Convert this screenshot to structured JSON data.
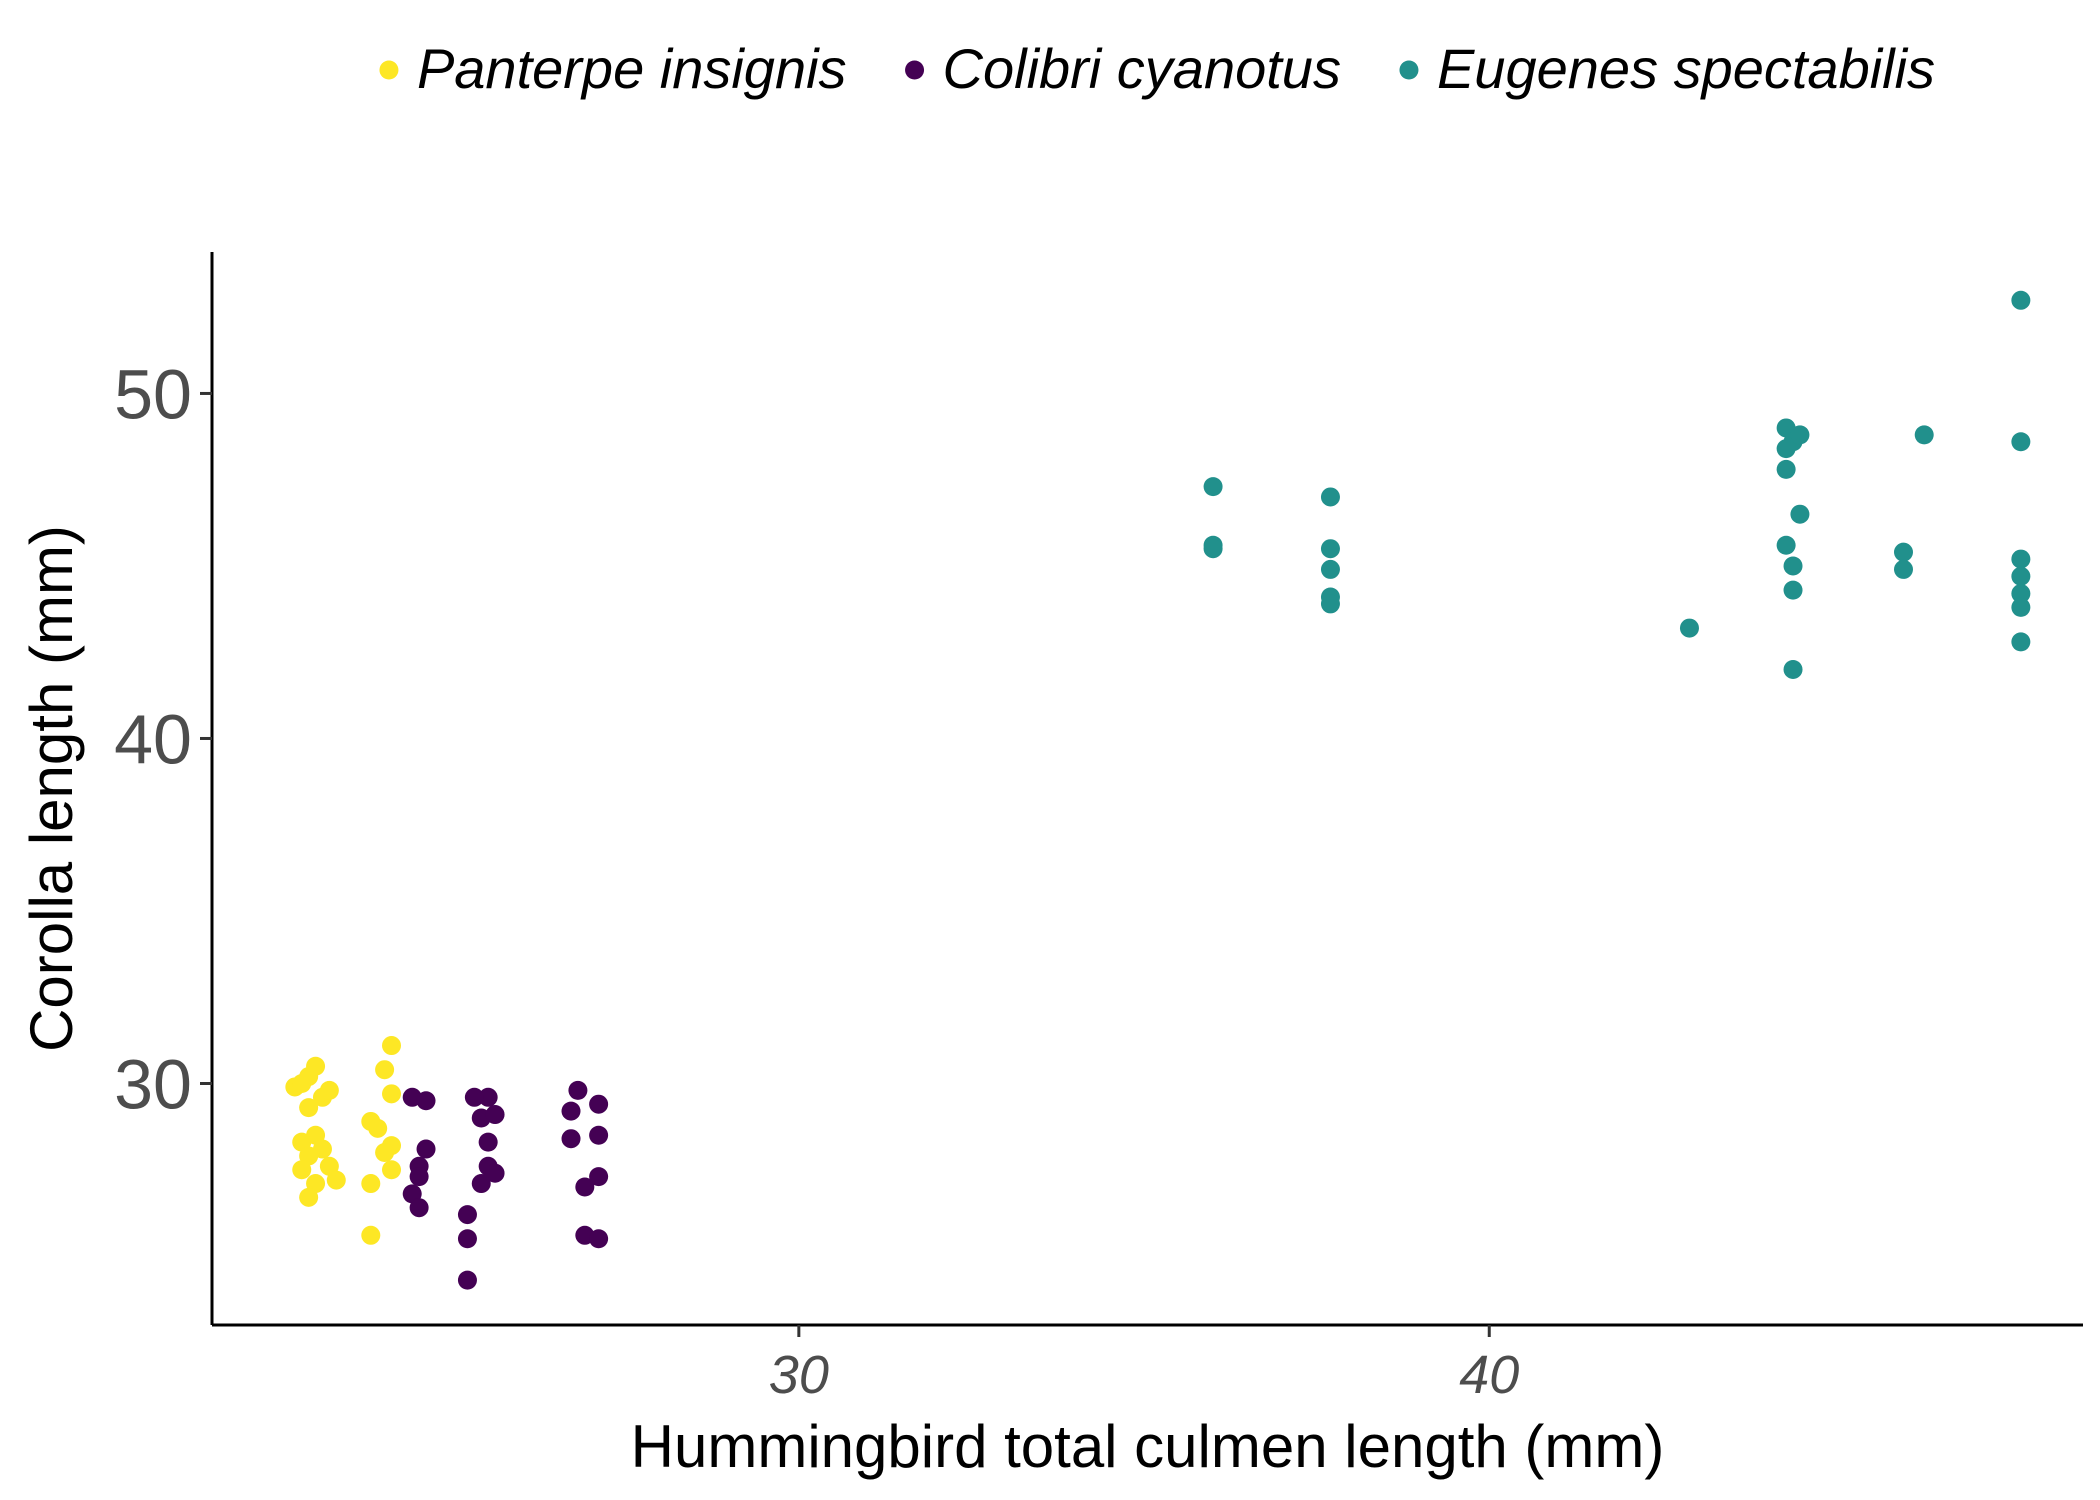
{
  "chart_data": {
    "type": "scatter",
    "title": "",
    "xlabel": "Hummingbird total culmen length (mm)",
    "ylabel": "Corolla length (mm)",
    "xlim": [
      21.5,
      48.6
    ],
    "ylim": [
      23.0,
      54.1
    ],
    "xticks": [
      30,
      40
    ],
    "yticks": [
      30,
      40,
      50
    ],
    "grid": false,
    "legend": "top",
    "series": [
      {
        "name": "Panterpe insignis",
        "color": "#FDE725",
        "points": [
          [
            22.7,
            29.9
          ],
          [
            22.8,
            30.0
          ],
          [
            22.9,
            30.2
          ],
          [
            23.0,
            30.5
          ],
          [
            23.1,
            29.6
          ],
          [
            22.9,
            29.3
          ],
          [
            23.2,
            29.8
          ],
          [
            22.8,
            28.3
          ],
          [
            23.0,
            28.5
          ],
          [
            23.1,
            28.1
          ],
          [
            22.9,
            27.9
          ],
          [
            23.2,
            27.6
          ],
          [
            22.8,
            27.5
          ],
          [
            23.0,
            27.1
          ],
          [
            23.3,
            27.2
          ],
          [
            22.9,
            26.7
          ],
          [
            24.1,
            31.1
          ],
          [
            24.0,
            30.4
          ],
          [
            24.1,
            29.7
          ],
          [
            23.8,
            28.9
          ],
          [
            23.9,
            28.7
          ],
          [
            24.1,
            28.2
          ],
          [
            24.0,
            28.0
          ],
          [
            24.1,
            27.5
          ],
          [
            23.8,
            27.1
          ],
          [
            23.8,
            25.6
          ]
        ]
      },
      {
        "name": "Colibri cyanotus",
        "color": "#440154",
        "points": [
          [
            24.4,
            29.6
          ],
          [
            24.6,
            29.5
          ],
          [
            24.6,
            28.1
          ],
          [
            24.5,
            27.6
          ],
          [
            24.5,
            27.3
          ],
          [
            24.4,
            26.8
          ],
          [
            24.5,
            26.4
          ],
          [
            25.5,
            29.6
          ],
          [
            25.4,
            29.0
          ],
          [
            25.6,
            29.1
          ],
          [
            25.3,
            29.6
          ],
          [
            25.5,
            28.3
          ],
          [
            25.5,
            27.6
          ],
          [
            25.6,
            27.4
          ],
          [
            25.4,
            27.1
          ],
          [
            25.2,
            26.2
          ],
          [
            25.2,
            25.5
          ],
          [
            25.2,
            24.3
          ],
          [
            26.8,
            29.8
          ],
          [
            26.7,
            29.2
          ],
          [
            27.1,
            29.4
          ],
          [
            26.7,
            28.4
          ],
          [
            27.1,
            28.5
          ],
          [
            26.9,
            27.0
          ],
          [
            27.1,
            27.3
          ],
          [
            26.9,
            25.6
          ],
          [
            27.1,
            25.5
          ]
        ]
      },
      {
        "name": "Eugenes spectabilis",
        "color": "#21908C",
        "points": [
          [
            36.0,
            47.3
          ],
          [
            36.0,
            45.6
          ],
          [
            36.0,
            45.5
          ],
          [
            37.7,
            47.0
          ],
          [
            37.7,
            45.5
          ],
          [
            37.7,
            44.9
          ],
          [
            37.7,
            44.1
          ],
          [
            37.7,
            43.9
          ],
          [
            42.9,
            43.2
          ],
          [
            44.3,
            49.0
          ],
          [
            44.4,
            48.6
          ],
          [
            44.5,
            48.8
          ],
          [
            44.3,
            48.4
          ],
          [
            44.3,
            47.8
          ],
          [
            44.5,
            46.5
          ],
          [
            44.3,
            45.6
          ],
          [
            44.4,
            45.0
          ],
          [
            44.4,
            44.3
          ],
          [
            44.4,
            42.0
          ],
          [
            46.0,
            45.4
          ],
          [
            46.0,
            44.9
          ],
          [
            46.3,
            48.8
          ],
          [
            47.7,
            52.7
          ],
          [
            47.7,
            48.6
          ],
          [
            47.7,
            45.2
          ],
          [
            47.7,
            44.7
          ],
          [
            47.7,
            44.2
          ],
          [
            47.7,
            43.8
          ],
          [
            47.7,
            42.8
          ]
        ]
      }
    ]
  }
}
